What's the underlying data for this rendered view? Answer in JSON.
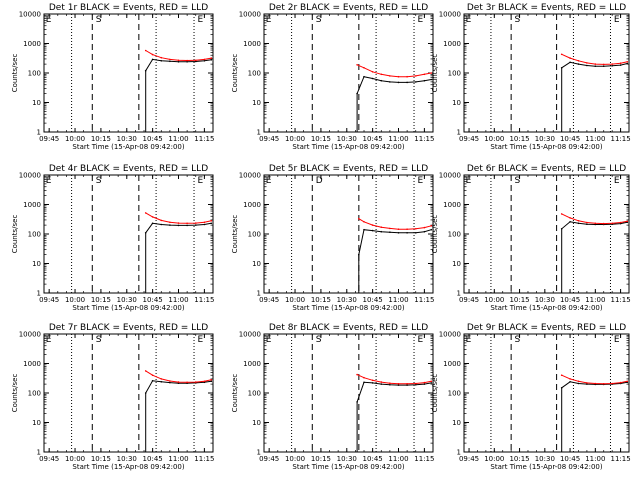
{
  "chart_data": [
    {
      "type": "line",
      "title": "Det 1r BLACK = Events, RED = LLD",
      "ylabel": "Counts/sec",
      "xlabel": "Start Time (15-Apr-08 09:42:00)",
      "yscale": "log",
      "ylim": [
        1,
        10000
      ],
      "xticks": [
        "09:45",
        "10:00",
        "10:15",
        "10:30",
        "10:45",
        "11:00",
        "11:15"
      ],
      "yticks": [
        "1",
        "10",
        "100",
        "1000",
        "10000"
      ],
      "markers": [
        "E",
        "S",
        "E"
      ],
      "x": [
        "10:41",
        "10:45",
        "10:50",
        "10:55",
        "11:00",
        "11:05",
        "11:10",
        "11:15",
        "11:19"
      ],
      "series": [
        {
          "name": "BLACK = Events",
          "color": "#000000",
          "values": [
            120,
            290,
            260,
            250,
            240,
            240,
            245,
            260,
            280
          ]
        },
        {
          "name": "RED = LLD",
          "color": "#ff0000",
          "values": [
            580,
            420,
            330,
            290,
            270,
            265,
            270,
            290,
            320
          ]
        }
      ]
    },
    {
      "type": "line",
      "title": "Det 2r BLACK = Events, RED = LLD",
      "ylabel": "Counts/sec",
      "xlabel": "Start Time (15-Apr-08 09:42:00)",
      "yscale": "log",
      "ylim": [
        1,
        10000
      ],
      "xticks": [
        "09:45",
        "10:00",
        "10:15",
        "10:30",
        "10:45",
        "11:00",
        "11:15"
      ],
      "yticks": [
        "1",
        "10",
        "100",
        "1000",
        "10000"
      ],
      "markers": [
        "E",
        "S",
        "E"
      ],
      "x": [
        "10:36",
        "10:40",
        "10:45",
        "10:50",
        "10:55",
        "11:00",
        "11:05",
        "11:10",
        "11:15",
        "11:19"
      ],
      "series": [
        {
          "name": "BLACK = Events",
          "color": "#000000",
          "values": [
            20,
            75,
            65,
            55,
            50,
            48,
            48,
            50,
            55,
            60
          ]
        },
        {
          "name": "RED = LLD",
          "color": "#ff0000",
          "values": [
            190,
            150,
            110,
            90,
            80,
            75,
            75,
            80,
            90,
            100
          ]
        }
      ]
    },
    {
      "type": "line",
      "title": "Det 3r BLACK = Events, RED = LLD",
      "ylabel": "Counts/sec",
      "xlabel": "Start Time (15-Apr-08 09:42:00)",
      "yscale": "log",
      "ylim": [
        1,
        10000
      ],
      "xticks": [
        "09:45",
        "10:00",
        "10:15",
        "10:30",
        "10:45",
        "11:00",
        "11:15"
      ],
      "yticks": [
        "1",
        "10",
        "100",
        "1000",
        "10000"
      ],
      "markers": [
        "E",
        "S",
        "E"
      ],
      "x": [
        "10:40",
        "10:45",
        "10:50",
        "10:55",
        "11:00",
        "11:05",
        "11:10",
        "11:15",
        "11:19"
      ],
      "series": [
        {
          "name": "BLACK = Events",
          "color": "#000000",
          "values": [
            150,
            230,
            200,
            180,
            170,
            170,
            175,
            185,
            210
          ]
        },
        {
          "name": "RED = LLD",
          "color": "#ff0000",
          "values": [
            430,
            320,
            260,
            220,
            200,
            195,
            200,
            215,
            240
          ]
        }
      ]
    },
    {
      "type": "line",
      "title": "Det 4r BLACK = Events, RED = LLD",
      "ylabel": "Counts/sec",
      "xlabel": "Start Time (15-Apr-08 09:42:00)",
      "yscale": "log",
      "ylim": [
        1,
        10000
      ],
      "xticks": [
        "09:45",
        "10:00",
        "10:15",
        "10:30",
        "10:45",
        "11:00",
        "11:15"
      ],
      "yticks": [
        "1",
        "10",
        "100",
        "1000",
        "10000"
      ],
      "markers": [
        "E",
        "S",
        "E"
      ],
      "x": [
        "10:41",
        "10:45",
        "10:50",
        "10:55",
        "11:00",
        "11:05",
        "11:10",
        "11:15",
        "11:19"
      ],
      "series": [
        {
          "name": "BLACK = Events",
          "color": "#000000",
          "values": [
            110,
            230,
            210,
            200,
            195,
            195,
            200,
            210,
            230
          ]
        },
        {
          "name": "RED = LLD",
          "color": "#ff0000",
          "values": [
            520,
            380,
            290,
            250,
            235,
            230,
            235,
            250,
            280
          ]
        }
      ]
    },
    {
      "type": "line",
      "title": "Det 5r BLACK = Events, RED = LLD",
      "ylabel": "Counts/sec",
      "xlabel": "Start Time (15-Apr-08 09:42:00)",
      "yscale": "log",
      "ylim": [
        1,
        10000
      ],
      "xticks": [
        "09:45",
        "10:00",
        "10:15",
        "10:30",
        "10:45",
        "11:00",
        "11:15"
      ],
      "yticks": [
        "1",
        "10",
        "100",
        "1000",
        "10000"
      ],
      "markers": [
        "E",
        "D",
        "E"
      ],
      "x": [
        "10:37",
        "10:40",
        "10:45",
        "10:50",
        "10:55",
        "11:00",
        "11:05",
        "11:10",
        "11:15",
        "11:19"
      ],
      "series": [
        {
          "name": "BLACK = Events",
          "color": "#000000",
          "values": [
            20,
            140,
            130,
            120,
            115,
            110,
            110,
            110,
            120,
            140
          ]
        },
        {
          "name": "RED = LLD",
          "color": "#ff0000",
          "values": [
            330,
            260,
            200,
            170,
            155,
            145,
            145,
            150,
            165,
            190
          ]
        }
      ]
    },
    {
      "type": "line",
      "title": "Det 6r BLACK = Events, RED = LLD",
      "ylabel": "Counts/sec",
      "xlabel": "Start Time (15-Apr-08 09:42:00)",
      "yscale": "log",
      "ylim": [
        1,
        10000
      ],
      "xticks": [
        "09:45",
        "10:00",
        "10:15",
        "10:30",
        "10:45",
        "11:00",
        "11:15"
      ],
      "yticks": [
        "1",
        "10",
        "100",
        "1000",
        "10000"
      ],
      "markers": [
        "E",
        "S",
        "E"
      ],
      "x": [
        "10:40",
        "10:45",
        "10:50",
        "10:55",
        "11:00",
        "11:05",
        "11:10",
        "11:15",
        "11:19"
      ],
      "series": [
        {
          "name": "BLACK = Events",
          "color": "#000000",
          "values": [
            150,
            260,
            230,
            215,
            210,
            210,
            215,
            225,
            250
          ]
        },
        {
          "name": "RED = LLD",
          "color": "#ff0000",
          "values": [
            480,
            350,
            280,
            245,
            230,
            225,
            230,
            245,
            270
          ]
        }
      ]
    },
    {
      "type": "line",
      "title": "Det 7r BLACK = Events, RED = LLD",
      "ylabel": "Counts/sec",
      "xlabel": "Start Time (15-Apr-08 09:42:00)",
      "yscale": "log",
      "ylim": [
        1,
        10000
      ],
      "xticks": [
        "09:45",
        "10:00",
        "10:15",
        "10:30",
        "10:45",
        "11:00",
        "11:15"
      ],
      "yticks": [
        "1",
        "10",
        "100",
        "1000",
        "10000"
      ],
      "markers": [
        "E",
        "S",
        "E"
      ],
      "x": [
        "10:41",
        "10:45",
        "10:50",
        "10:55",
        "11:00",
        "11:05",
        "11:10",
        "11:15",
        "11:19"
      ],
      "series": [
        {
          "name": "BLACK = Events",
          "color": "#000000",
          "values": [
            100,
            260,
            240,
            225,
            215,
            215,
            220,
            230,
            250
          ]
        },
        {
          "name": "RED = LLD",
          "color": "#ff0000",
          "values": [
            560,
            400,
            300,
            255,
            235,
            230,
            235,
            250,
            280
          ]
        }
      ]
    },
    {
      "type": "line",
      "title": "Det 8r BLACK = Events, RED = LLD",
      "ylabel": "Counts/sec",
      "xlabel": "Start Time (15-Apr-08 09:42:00)",
      "yscale": "log",
      "ylim": [
        1,
        10000
      ],
      "xticks": [
        "09:45",
        "10:00",
        "10:15",
        "10:30",
        "10:45",
        "11:00",
        "11:15"
      ],
      "yticks": [
        "1",
        "10",
        "100",
        "1000",
        "10000"
      ],
      "markers": [
        "E",
        "S",
        "E"
      ],
      "x": [
        "10:36",
        "10:40",
        "10:45",
        "10:50",
        "10:55",
        "11:00",
        "11:05",
        "11:10",
        "11:15",
        "11:19"
      ],
      "series": [
        {
          "name": "BLACK = Events",
          "color": "#000000",
          "values": [
            50,
            230,
            220,
            200,
            190,
            185,
            185,
            190,
            200,
            220
          ]
        },
        {
          "name": "RED = LLD",
          "color": "#ff0000",
          "values": [
            420,
            330,
            270,
            235,
            215,
            205,
            205,
            210,
            225,
            250
          ]
        }
      ]
    },
    {
      "type": "line",
      "title": "Det 9r BLACK = Events, RED = LLD",
      "ylabel": "Counts/sec",
      "xlabel": "Start Time (15-Apr-08 09:42:00)",
      "yscale": "log",
      "ylim": [
        1,
        10000
      ],
      "xticks": [
        "09:45",
        "10:00",
        "10:15",
        "10:30",
        "10:45",
        "11:00",
        "11:15"
      ],
      "yticks": [
        "1",
        "10",
        "100",
        "1000",
        "10000"
      ],
      "markers": [
        "E",
        "S",
        "E"
      ],
      "x": [
        "10:40",
        "10:45",
        "10:50",
        "10:55",
        "11:00",
        "11:05",
        "11:10",
        "11:15",
        "11:19"
      ],
      "series": [
        {
          "name": "BLACK = Events",
          "color": "#000000",
          "values": [
            150,
            240,
            210,
            200,
            195,
            195,
            200,
            210,
            230
          ]
        },
        {
          "name": "RED = LLD",
          "color": "#ff0000",
          "values": [
            400,
            300,
            250,
            220,
            210,
            205,
            210,
            225,
            250
          ]
        }
      ]
    }
  ]
}
